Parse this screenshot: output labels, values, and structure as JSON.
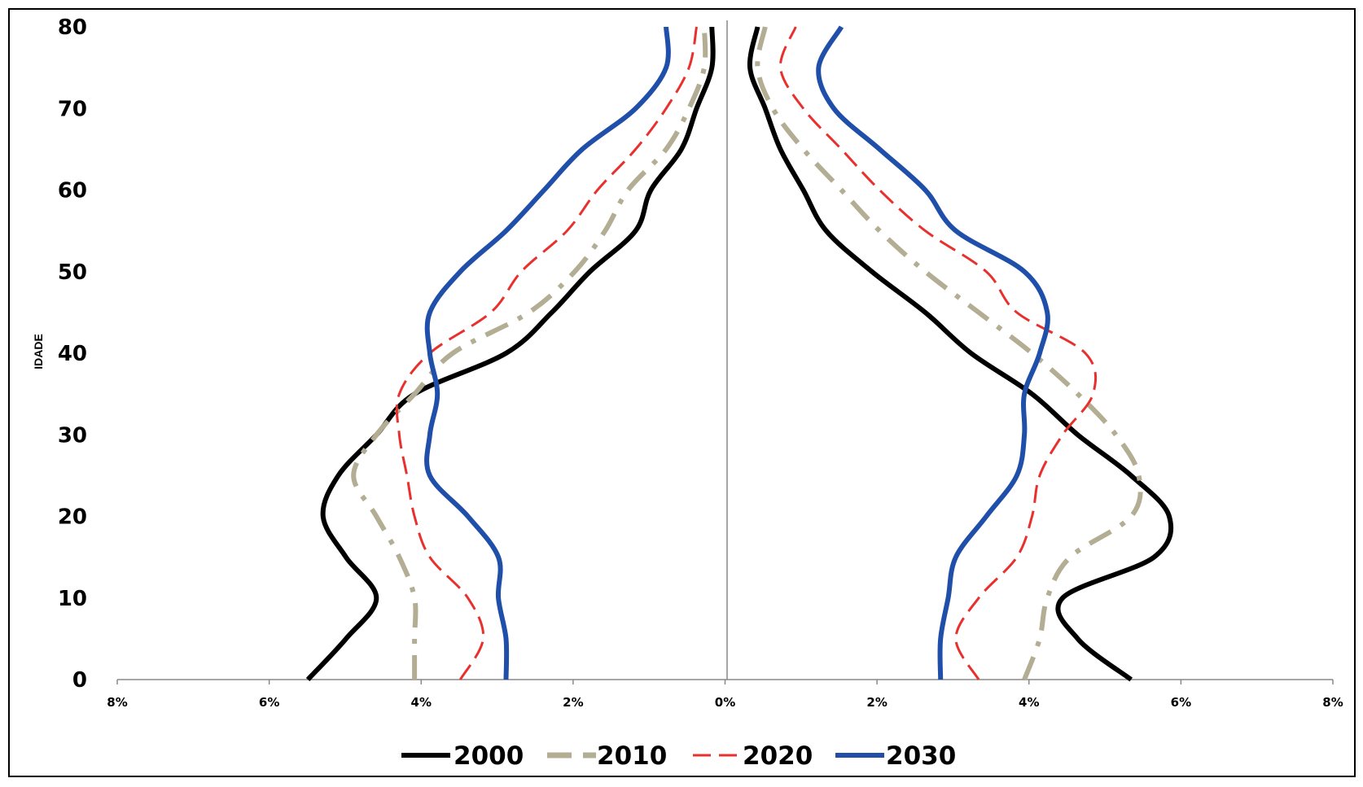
{
  "chart_data": {
    "type": "line",
    "layout": "population-pyramid",
    "ylabel": "IDADE",
    "xlabel": "",
    "title": "",
    "ylim": [
      0,
      80
    ],
    "xlim": [
      -8,
      8
    ],
    "y_ticks": [
      "0",
      "10",
      "20",
      "30",
      "40",
      "50",
      "60",
      "70",
      "80"
    ],
    "x_ticks": [
      "8%",
      "6%",
      "4%",
      "2%",
      "0%",
      "2%",
      "4%",
      "6%",
      "8%"
    ],
    "legend_position": "bottom",
    "ages": [
      0,
      5,
      10,
      15,
      20,
      25,
      30,
      35,
      40,
      45,
      50,
      55,
      60,
      65,
      70,
      75,
      80
    ],
    "series": [
      {
        "name": "2000",
        "color": "#000000",
        "style": "solid",
        "left": [
          5.5,
          5.0,
          4.6,
          5.0,
          5.3,
          5.1,
          4.6,
          4.1,
          2.9,
          2.3,
          1.8,
          1.2,
          1.0,
          0.6,
          0.4,
          0.2,
          0.2
        ],
        "right": [
          5.3,
          4.6,
          4.4,
          5.6,
          5.8,
          5.3,
          4.6,
          4.0,
          3.2,
          2.6,
          1.9,
          1.3,
          1.0,
          0.7,
          0.5,
          0.3,
          0.4
        ]
      },
      {
        "name": "2010",
        "color": "#b3ad94",
        "style": "dashdot",
        "left": [
          4.1,
          4.1,
          4.1,
          4.3,
          4.6,
          4.9,
          4.6,
          4.1,
          3.6,
          2.6,
          2.0,
          1.6,
          1.3,
          0.8,
          0.5,
          0.3,
          0.3
        ],
        "right": [
          3.9,
          4.1,
          4.2,
          4.5,
          5.3,
          5.4,
          5.1,
          4.6,
          4.0,
          3.3,
          2.6,
          2.0,
          1.5,
          1.0,
          0.6,
          0.4,
          0.5
        ]
      },
      {
        "name": "2020",
        "color": "#e8302e",
        "style": "dashed",
        "left": [
          3.5,
          3.2,
          3.4,
          3.9,
          4.1,
          4.2,
          4.3,
          4.3,
          3.9,
          3.1,
          2.7,
          2.1,
          1.7,
          1.2,
          0.8,
          0.5,
          0.4
        ],
        "right": [
          3.3,
          3.0,
          3.3,
          3.8,
          4.0,
          4.1,
          4.4,
          4.8,
          4.7,
          3.8,
          3.4,
          2.6,
          2.0,
          1.5,
          1.0,
          0.7,
          0.9
        ]
      },
      {
        "name": "2030",
        "color": "#1f4fa8",
        "style": "solid",
        "left": [
          2.9,
          2.9,
          3.0,
          3.0,
          3.4,
          3.9,
          3.9,
          3.8,
          3.9,
          3.9,
          3.5,
          2.9,
          2.4,
          1.9,
          1.2,
          0.8,
          0.8
        ],
        "right": [
          2.8,
          2.8,
          2.9,
          3.0,
          3.4,
          3.8,
          3.9,
          3.9,
          4.1,
          4.2,
          3.9,
          3.0,
          2.6,
          2.0,
          1.4,
          1.2,
          1.5
        ]
      }
    ]
  }
}
